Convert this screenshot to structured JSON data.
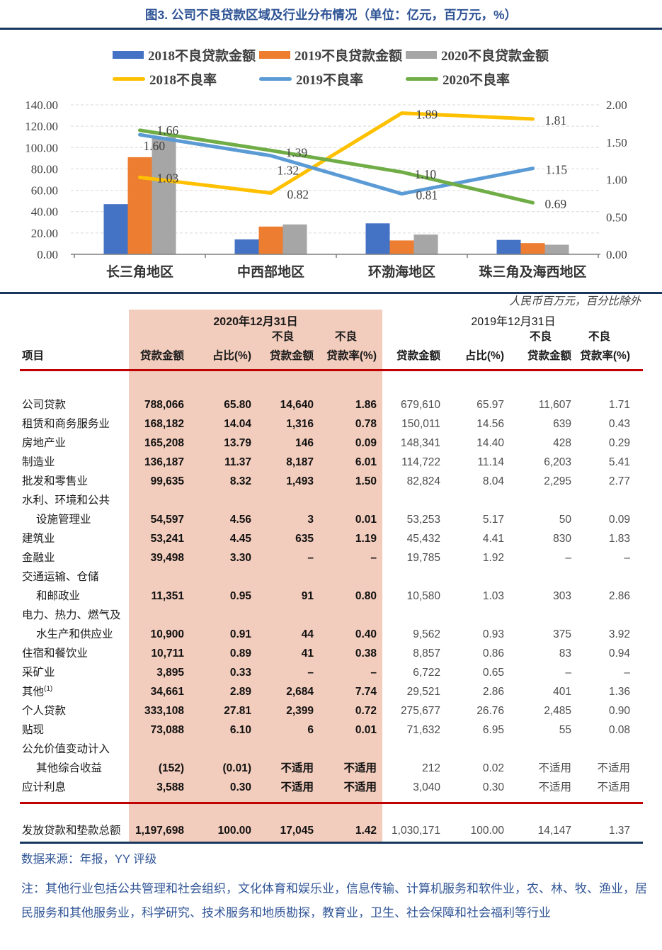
{
  "figure": {
    "title": "图3. 公司不良贷款区域及行业分布情况（单位：亿元，百万元，%）"
  },
  "chart_data": {
    "type": "bar+line",
    "categories": [
      "长三角地区",
      "中西部地区",
      "环渤海地区",
      "珠三角及海西地区"
    ],
    "bar_series": [
      {
        "name": "2018不良贷款金额",
        "color": "#4472C4",
        "values": [
          47,
          14,
          29,
          13.5
        ]
      },
      {
        "name": "2019不良贷款金额",
        "color": "#ED7D31",
        "values": [
          91,
          26,
          13,
          10.5
        ]
      },
      {
        "name": "2020不良贷款金额",
        "color": "#A6A6A6",
        "values": [
          110,
          28,
          18.5,
          9
        ]
      }
    ],
    "line_series": [
      {
        "name": "2018不良率",
        "color": "#FFC000",
        "values": [
          1.03,
          0.82,
          1.89,
          1.81
        ]
      },
      {
        "name": "2019不良率",
        "color": "#5B9BD5",
        "values": [
          1.6,
          1.32,
          0.81,
          1.15
        ]
      },
      {
        "name": "2020不良率",
        "color": "#70AD47",
        "values": [
          1.66,
          1.39,
          1.1,
          0.69
        ]
      }
    ],
    "left_axis": {
      "min": 0,
      "max": 140,
      "step": 20
    },
    "right_axis": {
      "min": 0,
      "max": 2,
      "step": 0.5
    },
    "grid": "dashed-horizontal",
    "legend_position": "top"
  },
  "table": {
    "unit_note": "人民币百万元，百分比除外",
    "group_headers": [
      "2020年12月31日",
      "2019年12月31日"
    ],
    "item_header": "项目",
    "sub_headers": [
      {
        "top": "",
        "bottom": "贷款金额"
      },
      {
        "top": "",
        "bottom": "占比(%)"
      },
      {
        "top": "不良",
        "bottom": "贷款金额"
      },
      {
        "top": "不良",
        "bottom": "贷款率(%)"
      }
    ],
    "rows": [
      {
        "label": "公司贷款",
        "bold": true,
        "v": [
          "788,066",
          "65.80",
          "14,640",
          "1.86",
          "679,610",
          "65.97",
          "11,607",
          "1.71"
        ]
      },
      {
        "label": "租赁和商务服务业",
        "v": [
          "168,182",
          "14.04",
          "1,316",
          "0.78",
          "150,011",
          "14.56",
          "639",
          "0.43"
        ]
      },
      {
        "label": "房地产业",
        "v": [
          "165,208",
          "13.79",
          "146",
          "0.09",
          "148,341",
          "14.40",
          "428",
          "0.29"
        ]
      },
      {
        "label": "制造业",
        "v": [
          "136,187",
          "11.37",
          "8,187",
          "6.01",
          "114,722",
          "11.14",
          "6,203",
          "5.41"
        ]
      },
      {
        "label": "批发和零售业",
        "v": [
          "99,635",
          "8.32",
          "1,493",
          "1.50",
          "82,824",
          "8.04",
          "2,295",
          "2.77"
        ]
      },
      {
        "label": "水利、环境和公共",
        "label2": "设施管理业",
        "v": [
          "54,597",
          "4.56",
          "3",
          "0.01",
          "53,253",
          "5.17",
          "50",
          "0.09"
        ]
      },
      {
        "label": "建筑业",
        "v": [
          "53,241",
          "4.45",
          "635",
          "1.19",
          "45,432",
          "4.41",
          "830",
          "1.83"
        ]
      },
      {
        "label": "金融业",
        "v": [
          "39,498",
          "3.30",
          "–",
          "–",
          "19,785",
          "1.92",
          "–",
          "–"
        ]
      },
      {
        "label": "交通运输、仓储",
        "label2": "和邮政业",
        "v": [
          "11,351",
          "0.95",
          "91",
          "0.80",
          "10,580",
          "1.03",
          "303",
          "2.86"
        ]
      },
      {
        "label": "电力、热力、燃气及",
        "label2": "水生产和供应业",
        "v": [
          "10,900",
          "0.91",
          "44",
          "0.40",
          "9,562",
          "0.93",
          "375",
          "3.92"
        ]
      },
      {
        "label": "住宿和餐饮业",
        "v": [
          "10,711",
          "0.89",
          "41",
          "0.38",
          "8,857",
          "0.86",
          "83",
          "0.94"
        ]
      },
      {
        "label": "采矿业",
        "v": [
          "3,895",
          "0.33",
          "–",
          "–",
          "6,722",
          "0.65",
          "–",
          "–"
        ]
      },
      {
        "label": "其他",
        "sup": "(1)",
        "v": [
          "34,661",
          "2.89",
          "2,684",
          "7.74",
          "29,521",
          "2.86",
          "401",
          "1.36"
        ]
      },
      {
        "label": "个人贷款",
        "bold": true,
        "v": [
          "333,108",
          "27.81",
          "2,399",
          "0.72",
          "275,677",
          "26.76",
          "2,485",
          "0.90"
        ]
      },
      {
        "label": "贴现",
        "bold": true,
        "v": [
          "73,088",
          "6.10",
          "6",
          "0.01",
          "71,632",
          "6.95",
          "55",
          "0.08"
        ]
      },
      {
        "label": "公允价值变动计入",
        "label2": "其他综合收益",
        "bold": true,
        "v": [
          "(152)",
          "(0.01)",
          "不适用",
          "不适用",
          "212",
          "0.02",
          "不适用",
          "不适用"
        ]
      },
      {
        "label": "应计利息",
        "bold": true,
        "v": [
          "3,588",
          "0.30",
          "不适用",
          "不适用",
          "3,040",
          "0.30",
          "不适用",
          "不适用"
        ]
      }
    ],
    "total_row": {
      "label": "发放贷款和垫款总额",
      "bold": true,
      "v": [
        "1,197,698",
        "100.00",
        "17,045",
        "1.42",
        "1,030,171",
        "100.00",
        "14,147",
        "1.37"
      ]
    }
  },
  "footer": {
    "source": "数据来源：年报，YY 评级",
    "note": "注：其他行业包括公共管理和社会组织，文化体育和娱乐业，信息传输、计算机服务和软件业，农、林、牧、渔业，居民服务和其他服务业，科学研究、技术服务和地质勘探，教育业，卫生、社会保障和社会福利等行业"
  },
  "colors": {
    "title_blue": "#2E5395",
    "navy_rule": "#17375E",
    "red_rule": "#C00000",
    "highlight_band": "#F2CCBC",
    "note_blue": "#2F5496",
    "axis_text": "#404040"
  }
}
